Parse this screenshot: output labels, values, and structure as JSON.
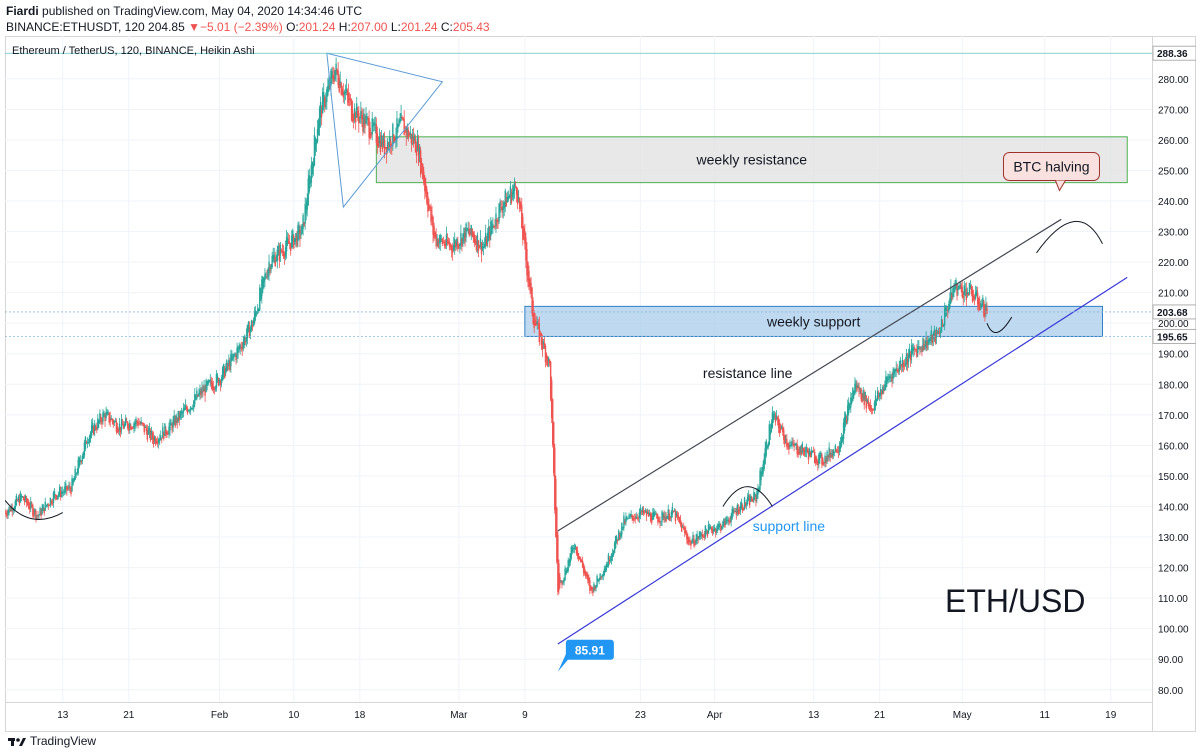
{
  "header": {
    "author": "Fiardi",
    "published": "published on TradingView.com, May 04, 2020 14:34:46 UTC",
    "symbol": "BINANCE:ETHUSDT, 120",
    "last": "204.85",
    "change_arrow": "▼",
    "change": "−5.01 (−2.39%)",
    "o_label": "O:",
    "o": "201.24",
    "h_label": "H:",
    "h": "207.00",
    "l_label": "L:",
    "l": "201.24",
    "c_label": "C:",
    "c": "205.43"
  },
  "footer": {
    "brand": "TradingView",
    "logo_icon": "tradingview-logo-icon"
  },
  "colors": {
    "up": "#26a69a",
    "down": "#ef5350",
    "channel": "#434651",
    "support": "#3a3ad8",
    "support_text": "#2196f3",
    "resistance_fill": "#e0e0e0",
    "resistance_border": "#4caf50",
    "support_fill": "#a9cdeb",
    "support_border": "#2f80c8",
    "label_blue": "#2196f3",
    "btc_box": "#f8e1de",
    "btc_border": "#a0302a"
  },
  "chart_data": {
    "type": "candlestick",
    "chart_style": "Heikin Ashi",
    "title": "Ethereum / TetherUS, 120, BINANCE, Heikin Ashi",
    "ylim": [
      76,
      294
    ],
    "y_ticks": [
      "80.00",
      "90.00",
      "100.00",
      "110.00",
      "120.00",
      "130.00",
      "140.00",
      "150.00",
      "160.00",
      "170.00",
      "180.00",
      "190.00",
      "200.00",
      "210.00",
      "220.00",
      "230.00",
      "240.00",
      "250.00",
      "260.00",
      "270.00",
      "280.00"
    ],
    "x_ticks": [
      "13",
      "21",
      "Feb",
      "10",
      "18",
      "Mar",
      "9",
      "23",
      "Apr",
      "13",
      "21",
      "May",
      "11",
      "19"
    ],
    "x_tick_dates": [
      "2020-01-13",
      "2020-01-21",
      "2020-02-01",
      "2020-02-10",
      "2020-02-18",
      "2020-03-01",
      "2020-03-09",
      "2020-03-23",
      "2020-04-01",
      "2020-04-13",
      "2020-04-21",
      "2020-05-01",
      "2020-05-11",
      "2020-05-19"
    ],
    "xlim": [
      "2020-01-06",
      "2020-05-24"
    ],
    "price_path": [
      [
        "2020-01-06",
        138
      ],
      [
        "2020-01-08",
        143
      ],
      [
        "2020-01-10",
        137
      ],
      [
        "2020-01-12",
        144
      ],
      [
        "2020-01-14",
        146
      ],
      [
        "2020-01-16",
        163
      ],
      [
        "2020-01-18",
        170
      ],
      [
        "2020-01-20",
        166
      ],
      [
        "2020-01-22",
        168
      ],
      [
        "2020-01-24",
        162
      ],
      [
        "2020-01-26",
        166
      ],
      [
        "2020-01-28",
        172
      ],
      [
        "2020-01-30",
        178
      ],
      [
        "2020-02-01",
        182
      ],
      [
        "2020-02-03",
        190
      ],
      [
        "2020-02-05",
        200
      ],
      [
        "2020-02-07",
        220
      ],
      [
        "2020-02-09",
        225
      ],
      [
        "2020-02-11",
        230
      ],
      [
        "2020-02-13",
        268
      ],
      [
        "2020-02-15",
        283
      ],
      [
        "2020-02-17",
        270
      ],
      [
        "2020-02-19",
        265
      ],
      [
        "2020-02-21",
        258
      ],
      [
        "2020-02-23",
        265
      ],
      [
        "2020-02-25",
        258
      ],
      [
        "2020-02-27",
        228
      ],
      [
        "2020-02-29",
        225
      ],
      [
        "2020-03-02",
        230
      ],
      [
        "2020-03-04",
        225
      ],
      [
        "2020-03-06",
        238
      ],
      [
        "2020-03-08",
        245
      ],
      [
        "2020-03-10",
        202
      ],
      [
        "2020-03-12",
        186
      ],
      [
        "2020-03-13",
        112
      ],
      [
        "2020-03-15",
        128
      ],
      [
        "2020-03-17",
        112
      ],
      [
        "2020-03-19",
        122
      ],
      [
        "2020-03-21",
        135
      ],
      [
        "2020-03-23",
        138
      ],
      [
        "2020-03-25",
        136
      ],
      [
        "2020-03-27",
        138
      ],
      [
        "2020-03-29",
        128
      ],
      [
        "2020-03-31",
        132
      ],
      [
        "2020-04-02",
        134
      ],
      [
        "2020-04-04",
        140
      ],
      [
        "2020-04-06",
        143
      ],
      [
        "2020-04-08",
        170
      ],
      [
        "2020-04-10",
        160
      ],
      [
        "2020-04-12",
        158
      ],
      [
        "2020-04-14",
        155
      ],
      [
        "2020-04-16",
        160
      ],
      [
        "2020-04-18",
        180
      ],
      [
        "2020-04-20",
        172
      ],
      [
        "2020-04-22",
        182
      ],
      [
        "2020-04-24",
        188
      ],
      [
        "2020-04-26",
        193
      ],
      [
        "2020-04-28",
        196
      ],
      [
        "2020-04-30",
        212
      ],
      [
        "2020-05-02",
        210
      ],
      [
        "2020-05-04",
        204
      ]
    ],
    "price_labels": [
      {
        "value": 288.36,
        "text": "288.36"
      },
      {
        "value": 203.68,
        "text": "203.68"
      },
      {
        "value": 195.65,
        "text": "195.65"
      }
    ],
    "low_marker": {
      "text": "85.91",
      "date": "2020-03-13",
      "value": 85.91
    },
    "zones": [
      {
        "label": "weekly resistance",
        "from": "2020-02-20",
        "to": "2020-05-21",
        "low": 246,
        "high": 261
      },
      {
        "label": "weekly support",
        "from": "2020-03-09",
        "to": "2020-05-18",
        "low": 195.65,
        "high": 205.5
      }
    ],
    "trendlines": [
      {
        "label": "resistance line",
        "from": [
          "2020-03-13",
          132
        ],
        "to": [
          "2020-05-13",
          234
        ]
      },
      {
        "label": "support line",
        "from": [
          "2020-03-13",
          95
        ],
        "to": [
          "2020-05-21",
          215
        ]
      }
    ],
    "triangle": [
      [
        "2020-02-14",
        288.36
      ],
      [
        "2020-02-28",
        279
      ],
      [
        "2020-02-16",
        238
      ]
    ],
    "annotations": [
      {
        "text": "BTC halving",
        "kind": "callout"
      },
      {
        "text": "ETH/USD",
        "kind": "watermark"
      }
    ]
  }
}
